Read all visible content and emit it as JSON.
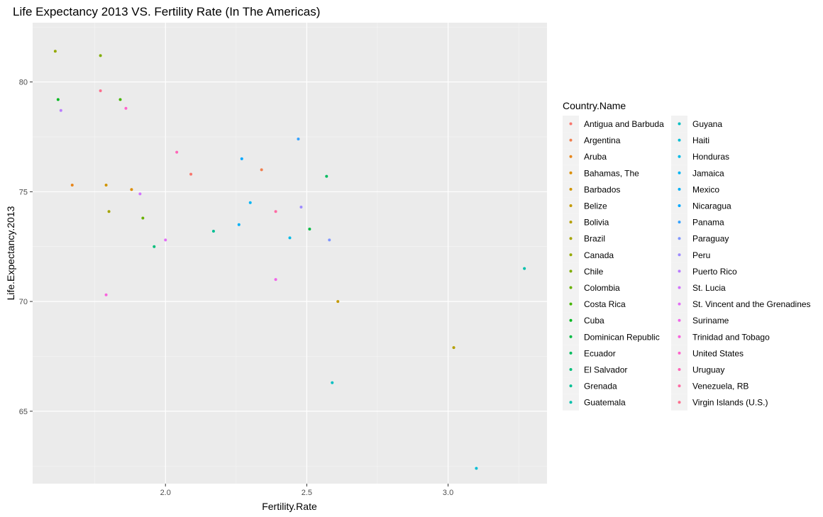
{
  "chart_data": {
    "type": "scatter",
    "title": "Life Expectancy 2013 VS. Fertility Rate (In The Americas)",
    "xlabel": "Fertility.Rate",
    "ylabel": "Life.Expectancy.2013",
    "xlim": [
      1.53,
      3.35
    ],
    "ylim": [
      61.7,
      82.7
    ],
    "xticks": [
      2.0,
      2.5,
      3.0
    ],
    "xtick_labels": [
      "2.0",
      "2.5",
      "3.0"
    ],
    "yticks": [
      65,
      70,
      75,
      80
    ],
    "ytick_labels": [
      "65",
      "70",
      "75",
      "80"
    ],
    "grid": true,
    "legend_title": "Country.Name",
    "legend_position": "right",
    "series": [
      {
        "name": "Antigua and Barbuda",
        "color": "#F8766D",
        "x": 2.09,
        "y": 75.8
      },
      {
        "name": "Argentina",
        "color": "#F07E4E",
        "x": 2.34,
        "y": 76.0
      },
      {
        "name": "Aruba",
        "color": "#E7861B",
        "x": 1.67,
        "y": 75.3
      },
      {
        "name": "Bahamas, The",
        "color": "#DC8E00",
        "x": 1.88,
        "y": 75.1
      },
      {
        "name": "Barbados",
        "color": "#D09400",
        "x": 1.79,
        "y": 75.3
      },
      {
        "name": "Belize",
        "color": "#C49A00",
        "x": 2.61,
        "y": 70.0
      },
      {
        "name": "Bolivia",
        "color": "#B59F00",
        "x": 3.02,
        "y": 67.9
      },
      {
        "name": "Brazil",
        "color": "#A5A400",
        "x": 1.8,
        "y": 74.1
      },
      {
        "name": "Canada",
        "color": "#94A900",
        "x": 1.61,
        "y": 81.4
      },
      {
        "name": "Chile",
        "color": "#80AD00",
        "x": 1.77,
        "y": 81.2
      },
      {
        "name": "Colombia",
        "color": "#68B100",
        "x": 1.92,
        "y": 73.8
      },
      {
        "name": "Costa Rica",
        "color": "#45B500",
        "x": 1.84,
        "y": 79.2
      },
      {
        "name": "Cuba",
        "color": "#00B81F",
        "x": 1.62,
        "y": 79.2
      },
      {
        "name": "Dominican Republic",
        "color": "#00BA42",
        "x": 2.51,
        "y": 73.3
      },
      {
        "name": "Ecuador",
        "color": "#00BC5F",
        "x": 2.57,
        "y": 75.7
      },
      {
        "name": "El Salvador",
        "color": "#00BE7A",
        "x": 1.96,
        "y": 72.5
      },
      {
        "name": "Grenada",
        "color": "#00BF93",
        "x": 2.17,
        "y": 73.2
      },
      {
        "name": "Guatemala",
        "color": "#00C0AB",
        "x": 3.27,
        "y": 71.5
      },
      {
        "name": "Guyana",
        "color": "#00BFC2",
        "x": 2.59,
        "y": 66.3
      },
      {
        "name": "Haiti",
        "color": "#00BDD5",
        "x": 3.1,
        "y": 62.4
      },
      {
        "name": "Honduras",
        "color": "#00BAE7",
        "x": 2.44,
        "y": 72.9
      },
      {
        "name": "Jamaica",
        "color": "#00B5F4",
        "x": 2.3,
        "y": 74.5
      },
      {
        "name": "Mexico",
        "color": "#00B0F6",
        "x": 2.26,
        "y": 73.5
      },
      {
        "name": "Nicaragua",
        "color": "#00A8FF",
        "x": 2.27,
        "y": 76.5
      },
      {
        "name": "Panama",
        "color": "#35A2FF",
        "x": 2.47,
        "y": 77.4
      },
      {
        "name": "Paraguay",
        "color": "#7F96FF",
        "x": 2.58,
        "y": 72.8
      },
      {
        "name": "Peru",
        "color": "#9E8BFF",
        "x": 2.48,
        "y": 74.3
      },
      {
        "name": "Puerto Rico",
        "color": "#BA7DFF",
        "x": 1.63,
        "y": 78.7
      },
      {
        "name": "St. Lucia",
        "color": "#D274FC",
        "x": 1.91,
        "y": 74.9
      },
      {
        "name": "St. Vincent and the Grenadines",
        "color": "#E36EF6",
        "x": 2.0,
        "y": 72.8
      },
      {
        "name": "Suriname",
        "color": "#F066E9",
        "x": 2.39,
        "y": 71.0
      },
      {
        "name": "Trinidad and Tobago",
        "color": "#F962DD",
        "x": 1.79,
        "y": 70.3
      },
      {
        "name": "United States",
        "color": "#FF63CC",
        "x": 1.86,
        "y": 78.8
      },
      {
        "name": "Uruguay",
        "color": "#FF66B8",
        "x": 2.04,
        "y": 76.8
      },
      {
        "name": "Venezuela, RB",
        "color": "#FF6AA4",
        "x": 2.39,
        "y": 74.1
      },
      {
        "name": "Virgin Islands (U.S.)",
        "color": "#FC6F8E",
        "x": 1.77,
        "y": 79.6
      }
    ]
  }
}
